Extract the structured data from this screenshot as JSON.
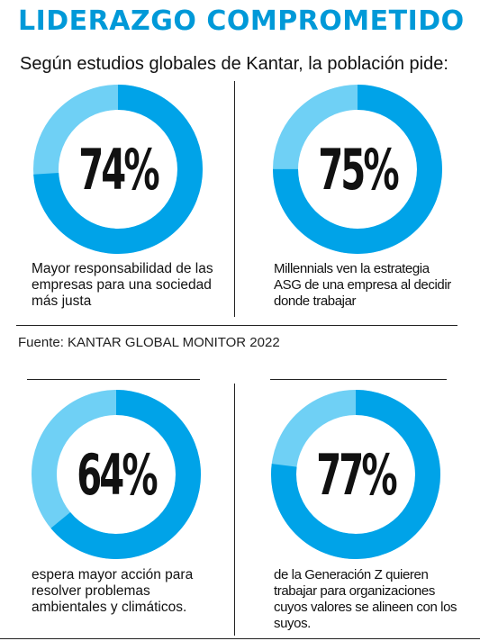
{
  "title": "LIDERAZGO COMPROMETIDO",
  "subtitle": "Según estudios globales de Kantar, la población pide:",
  "source": "Fuente: KANTAR GLOBAL MONITOR 2022",
  "colors": {
    "title": "#0099d8",
    "ring_main": "#00a3e8",
    "ring_rest": "#6fd0f5"
  },
  "chart_data": [
    {
      "type": "pie",
      "value": 74,
      "label": "74%",
      "caption": "Mayor responsabilidad de las empresas para una sociedad más justa"
    },
    {
      "type": "pie",
      "value": 75,
      "label": "75%",
      "caption": "Millennials ven la estrategia ASG de una empresa al decidir donde trabajar"
    },
    {
      "type": "pie",
      "value": 64,
      "label": "64%",
      "caption": "espera mayor acción para resolver problemas ambientales y climáticos."
    },
    {
      "type": "pie",
      "value": 77,
      "label": "77%",
      "caption": "de la Generación Z quieren trabajar para organizaciones cuyos valores se alineen con los suyos."
    }
  ]
}
